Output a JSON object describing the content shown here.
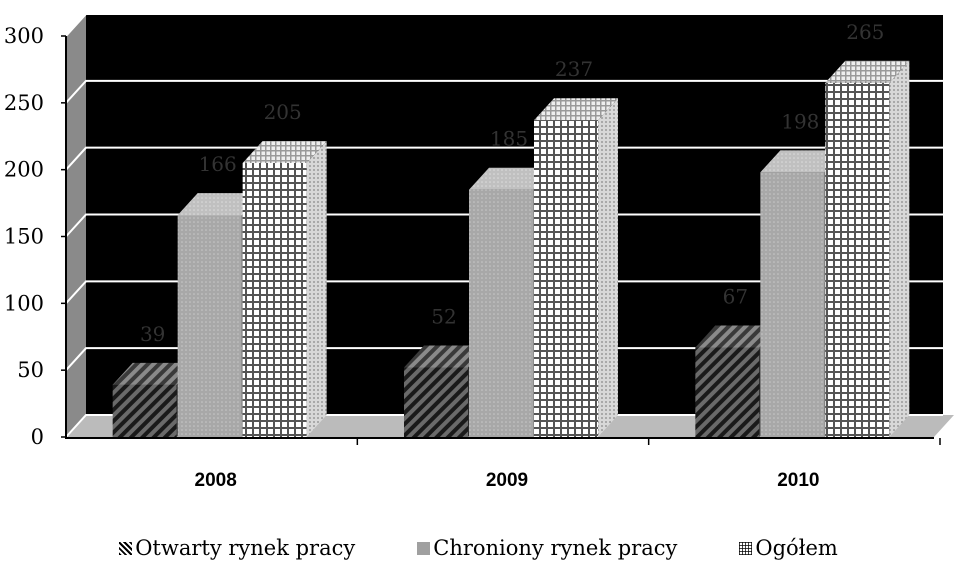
{
  "chart_data": {
    "type": "bar",
    "categories": [
      "2008",
      "2009",
      "2010"
    ],
    "series": [
      {
        "name": "Otwarty rynek pracy",
        "values": [
          39,
          52,
          67
        ],
        "pattern": "diagonal-stripes"
      },
      {
        "name": "Chroniony rynek pracy",
        "values": [
          166,
          185,
          198
        ],
        "pattern": "dots"
      },
      {
        "name": "Ogółem",
        "values": [
          205,
          237,
          265
        ],
        "pattern": "grid"
      }
    ],
    "title": "",
    "xlabel": "",
    "ylabel": "",
    "ylim": [
      0,
      300
    ],
    "yticks": [
      0,
      50,
      100,
      150,
      200,
      250,
      300
    ],
    "grid": true,
    "legend": "bottom",
    "style": "3d",
    "colors": {
      "background": "#000000",
      "gridline": "#ffffff",
      "wall": "#8a8a8a",
      "floor": "#bbbbbb",
      "label": "#333333"
    }
  }
}
